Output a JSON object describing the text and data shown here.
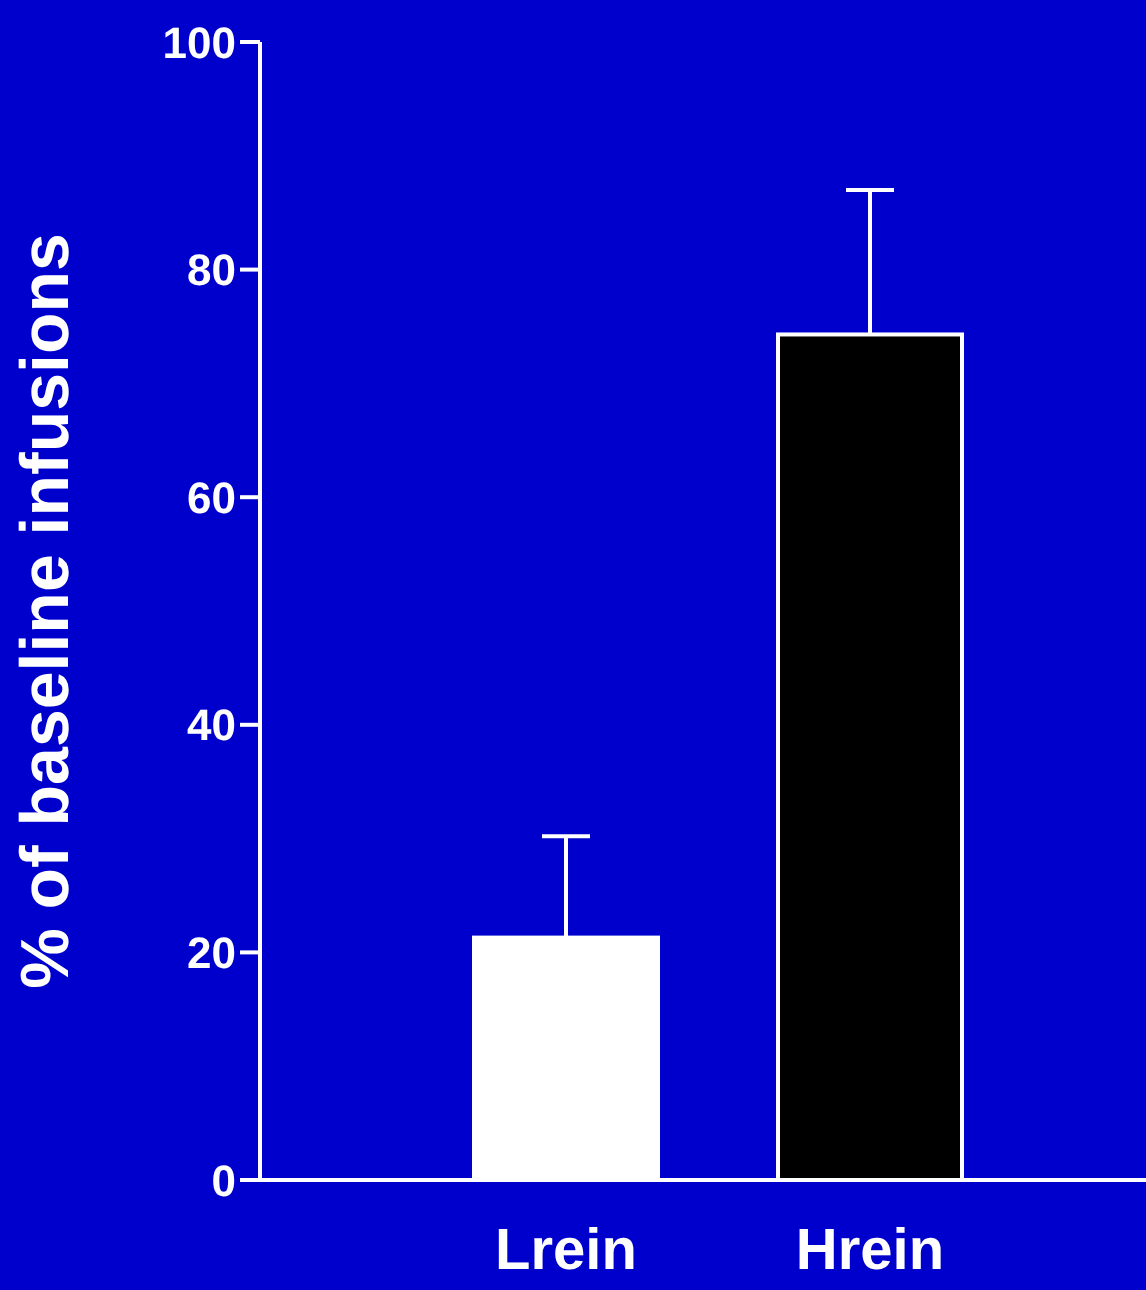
{
  "chart_data": {
    "type": "bar",
    "ylabel": "% of baseline infusions",
    "categories": [
      "Lrein",
      "Hrein"
    ],
    "values": [
      21.3,
      74.3
    ],
    "errors": [
      [
        21.3,
        30.2
      ],
      [
        74.3,
        87.0
      ]
    ],
    "colors": [
      "#ffffff",
      "#000000"
    ],
    "ylim": [
      0,
      100
    ],
    "yticks": [
      0,
      20,
      40,
      60,
      80,
      100
    ],
    "grid": false,
    "legend": false
  }
}
